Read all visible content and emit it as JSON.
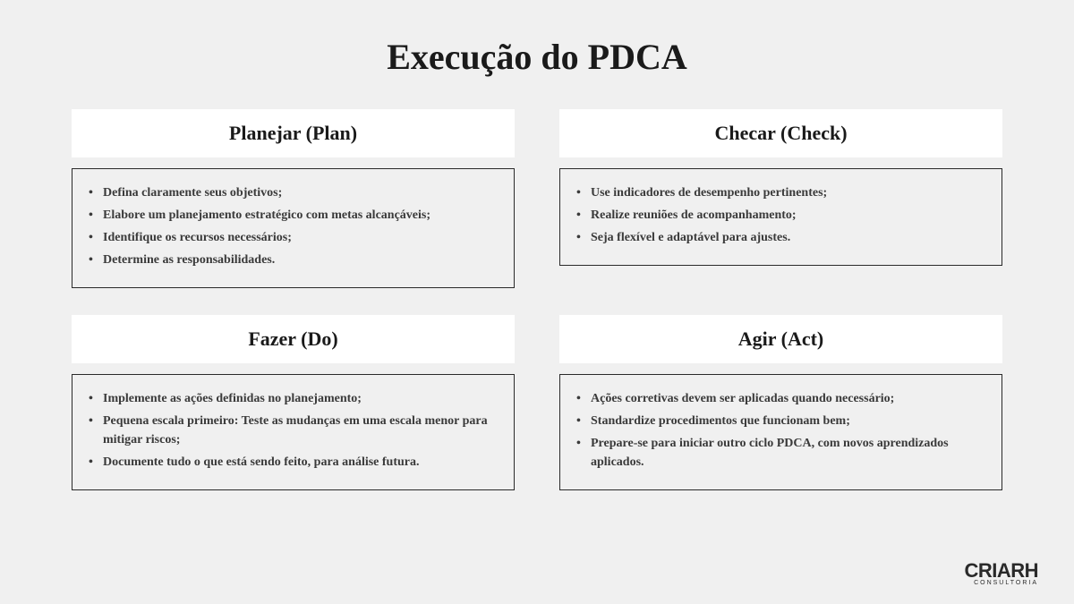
{
  "title": "Execução do PDCA",
  "background_color": "#f0f0f0",
  "header_bg": "#ffffff",
  "border_color": "#2a2a2a",
  "text_color": "#3a3a3a",
  "title_fontsize": 40,
  "header_fontsize": 22,
  "body_fontsize": 14,
  "sections": [
    {
      "title": "Planejar (Plan)",
      "items": [
        "Defina claramente seus objetivos;",
        "Elabore um planejamento estratégico com metas alcançáveis;",
        "Identifique os recursos necessários;",
        "Determine as responsabilidades."
      ]
    },
    {
      "title": "Checar (Check)",
      "items": [
        "Use indicadores de desempenho pertinentes;",
        "Realize reuniões de acompanhamento;",
        "Seja flexível e adaptável para ajustes."
      ]
    },
    {
      "title": "Fazer (Do)",
      "items": [
        "Implemente as ações definidas no planejamento;",
        "Pequena escala primeiro: Teste as mudanças em uma escala menor para mitigar riscos;",
        "Documente tudo o que está sendo feito, para análise futura."
      ]
    },
    {
      "title": "Agir (Act)",
      "items": [
        "Ações corretivas devem ser aplicadas quando necessário;",
        "Standardize procedimentos que funcionam bem;",
        "Prepare-se para iniciar outro ciclo PDCA, com novos aprendizados aplicados."
      ]
    }
  ],
  "logo": {
    "main": "CRIARH",
    "sub": "CONSULTORIA"
  }
}
